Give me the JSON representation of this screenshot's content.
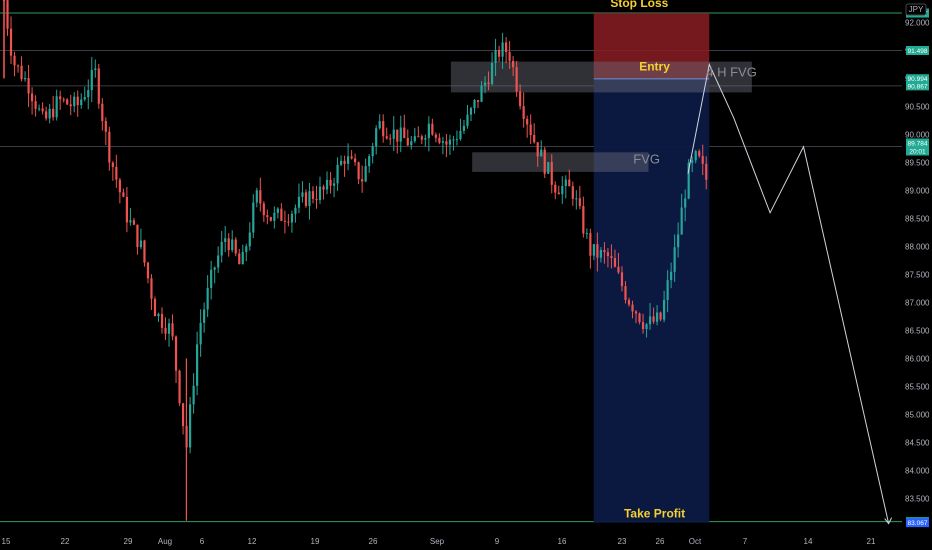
{
  "chart_data": {
    "type": "candlestick",
    "currency_badge": "JPY",
    "x_ticks": [
      "15",
      "22",
      "29",
      "Aug",
      "6",
      "12",
      "19",
      "26",
      "Sep",
      "9",
      "16",
      "23",
      "26",
      "Oct",
      "7",
      "14",
      "21"
    ],
    "y_ticks": [
      "92.000",
      "91.500",
      "91.000",
      "90.500",
      "90.000",
      "89.500",
      "89.000",
      "88.500",
      "88.000",
      "87.500",
      "87.000",
      "86.500",
      "86.000",
      "85.500",
      "85.000",
      "84.500",
      "84.000",
      "83.500"
    ],
    "ylim": [
      82.9,
      92.4
    ],
    "price_labels": [
      {
        "text": "92.167",
        "value": 92.167,
        "color": "#22ab94"
      },
      {
        "text": "91.498",
        "value": 91.498,
        "color": "#22ab94"
      },
      {
        "text": "90.994",
        "value": 90.994,
        "color": "#22ab94"
      },
      {
        "text": "90.867",
        "value": 90.867,
        "color": "#22ab94"
      },
      {
        "text": "89.784",
        "value": 89.784,
        "sub": "20:01",
        "color": "#22ab94"
      },
      {
        "text": "83.085",
        "value": 83.085,
        "color": "#22ab94"
      },
      {
        "text": "83.067",
        "value": 83.067,
        "color": "#2962ff"
      }
    ],
    "horizontal_levels": [
      92.167,
      91.498,
      90.867,
      89.784,
      83.085
    ],
    "annotations": {
      "stop_loss": "Stop Loss",
      "entry": "Entry",
      "fvg_4h": "4 H FVG",
      "fvg": "FVG",
      "take_profit": "Take Profit"
    },
    "position": {
      "stop": 92.167,
      "entry": 90.994,
      "target": 83.067
    },
    "zones": [
      {
        "name": "4 H FVG",
        "top": 91.3,
        "bottom": 90.75
      },
      {
        "name": "FVG",
        "top": 89.68,
        "bottom": 89.33
      }
    ],
    "projection_path": [
      [
        22.5,
        89.3
      ],
      [
        23.2,
        91.25
      ],
      [
        24.0,
        90.3
      ],
      [
        25.2,
        88.6
      ],
      [
        26.3,
        89.78
      ],
      [
        29.1,
        83.05
      ]
    ],
    "price_path": [
      [
        0,
        92.4
      ],
      [
        0.3,
        91.3
      ],
      [
        0.8,
        90.9
      ],
      [
        1.3,
        90.2
      ],
      [
        1.8,
        90.6
      ],
      [
        2.4,
        90.5
      ],
      [
        3.0,
        91.1
      ],
      [
        3.4,
        89.8
      ],
      [
        4.0,
        88.6
      ],
      [
        4.5,
        88.0
      ],
      [
        5.0,
        86.8
      ],
      [
        5.5,
        86.5
      ],
      [
        6.0,
        84.4
      ],
      [
        6.4,
        86.5
      ],
      [
        6.9,
        87.6
      ],
      [
        7.3,
        88.2
      ],
      [
        7.8,
        87.6
      ],
      [
        8.3,
        88.9
      ],
      [
        8.8,
        88.5
      ],
      [
        9.4,
        88.6
      ],
      [
        10.0,
        88.9
      ],
      [
        10.6,
        89.0
      ],
      [
        11.2,
        89.6
      ],
      [
        11.8,
        89.2
      ],
      [
        12.3,
        90.2
      ],
      [
        12.9,
        90.0
      ],
      [
        13.5,
        89.8
      ],
      [
        14.0,
        90.2
      ],
      [
        14.6,
        89.8
      ],
      [
        15.2,
        90.2
      ],
      [
        15.8,
        90.9
      ],
      [
        16.3,
        91.5
      ],
      [
        16.6,
        91.5
      ],
      [
        17.0,
        90.6
      ],
      [
        17.5,
        89.8
      ],
      [
        18.1,
        89.1
      ],
      [
        18.7,
        89.0
      ],
      [
        19.3,
        87.9
      ],
      [
        19.9,
        87.8
      ],
      [
        20.5,
        87.1
      ],
      [
        21.1,
        86.6
      ],
      [
        21.6,
        86.7
      ],
      [
        22.1,
        88.0
      ],
      [
        22.5,
        89.3
      ],
      [
        22.8,
        89.6
      ],
      [
        23.1,
        89.2
      ]
    ]
  }
}
